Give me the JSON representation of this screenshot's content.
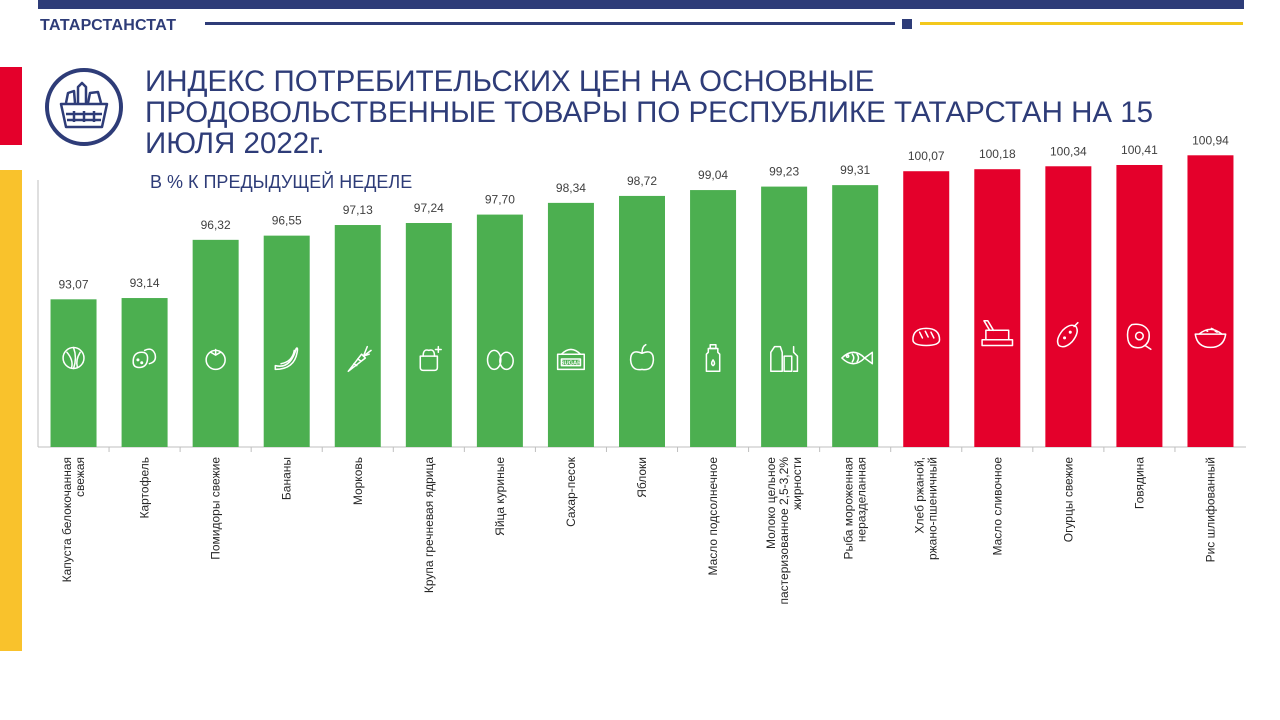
{
  "header": {
    "org": "ТАТАРСТАНСТАТ",
    "title": "ИНДЕКС ПОТРЕБИТЕЛЬСКИХ ЦЕН НА ОСНОВНЫЕ ПРОДОВОЛЬСТВЕННЫЕ ТОВАРЫ ПО РЕСПУБЛИКЕ ТАТАРСТАН НА 15 ИЮЛЯ 2022г.",
    "subtitle": "В % К ПРЕДЫДУЩЕЙ НЕДЕЛЕ"
  },
  "colors": {
    "navy": "#2e3c78",
    "yellow": "#f3c81d",
    "red_accent": "#e4002b",
    "bar_green": "#4caf50",
    "bar_red": "#e4002b"
  },
  "chart_data": {
    "type": "bar",
    "title": "В % К ПРЕДЫДУЩЕЙ НЕДЕЛЕ",
    "categories": [
      "Капуста белокочанная свежая",
      "Картофель",
      "Помидоры свежие",
      "Бананы",
      "Морковь",
      "Крупа гречневая ядрица",
      "Яйца куриные",
      "Сахар-песок",
      "Яблоки",
      "Масло подсолнечное",
      "Молоко цельное пастеризованное 2,5-3,2% жирности",
      "Рыба мороженная неразделанная",
      "Хлеб ржаной, ржано-пшеничный",
      "Масло сливочное",
      "Огурцы свежие",
      "Говядина",
      "Рис шлифованный"
    ],
    "values": [
      93.07,
      93.14,
      96.32,
      96.55,
      97.13,
      97.24,
      97.7,
      98.34,
      98.72,
      99.04,
      99.23,
      99.31,
      100.07,
      100.18,
      100.34,
      100.41,
      100.94
    ],
    "value_labels": [
      "93,07",
      "93,14",
      "96,32",
      "96,55",
      "97,13",
      "97,24",
      "97,70",
      "98,34",
      "98,72",
      "99,04",
      "99,23",
      "99,31",
      "100,07",
      "100,18",
      "100,34",
      "100,41",
      "100,94"
    ],
    "icons": [
      "cabbage-icon",
      "potato-icon",
      "tomato-icon",
      "banana-icon",
      "carrot-icon",
      "buckwheat-icon",
      "eggs-icon",
      "sugar-icon",
      "apple-icon",
      "oil-bottle-icon",
      "milk-icon",
      "fish-icon",
      "bread-icon",
      "butter-icon",
      "cucumber-icon",
      "beef-icon",
      "rice-icon"
    ],
    "bar_colors": [
      "green",
      "green",
      "green",
      "green",
      "green",
      "green",
      "green",
      "green",
      "green",
      "green",
      "green",
      "green",
      "red",
      "red",
      "red",
      "red",
      "red"
    ],
    "grid": false,
    "legend": "none"
  }
}
